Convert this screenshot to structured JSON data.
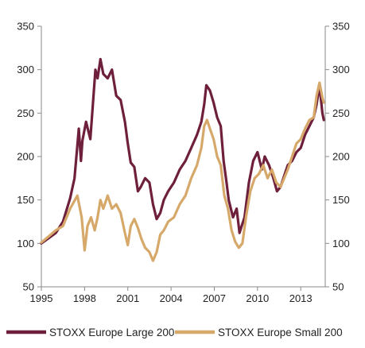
{
  "chart_data": {
    "type": "line",
    "title": "",
    "xlabel": "",
    "ylabel": "",
    "x_ticks": [
      "1995",
      "1998",
      "2001",
      "2004",
      "2007",
      "2010",
      "2013"
    ],
    "x_tick_values": [
      1995,
      1998,
      2001,
      2004,
      2007,
      2010,
      2013
    ],
    "xlim": [
      1995,
      2014.7
    ],
    "y_ticks": [
      "50",
      "100",
      "150",
      "200",
      "250",
      "300",
      "350"
    ],
    "y_tick_values": [
      50,
      100,
      150,
      200,
      250,
      300,
      350
    ],
    "ylim": [
      50,
      350
    ],
    "secondary_y_axis": true,
    "grid": false,
    "legend_position": "bottom",
    "series": [
      {
        "name": "STOXX Europe Large 200",
        "color": "#6e1f3c",
        "x": [
          1995.0,
          1995.5,
          1996.0,
          1996.5,
          1997.0,
          1997.3,
          1997.6,
          1997.75,
          1997.85,
          1998.1,
          1998.4,
          1998.6,
          1998.75,
          1998.9,
          1999.1,
          1999.3,
          1999.6,
          1999.9,
          2000.2,
          2000.5,
          2000.8,
          2001.0,
          2001.2,
          2001.45,
          2001.7,
          2001.9,
          2002.2,
          2002.5,
          2002.75,
          2003.0,
          2003.25,
          2003.5,
          2003.8,
          2004.2,
          2004.6,
          2005.0,
          2005.4,
          2005.8,
          2006.1,
          2006.3,
          2006.45,
          2006.7,
          2006.95,
          2007.2,
          2007.45,
          2007.65,
          2007.85,
          2008.0,
          2008.3,
          2008.55,
          2008.75,
          2008.9,
          2009.1,
          2009.4,
          2009.7,
          2010.0,
          2010.3,
          2010.5,
          2010.8,
          2011.1,
          2011.35,
          2011.6,
          2011.8,
          2012.1,
          2012.4,
          2012.7,
          2013.0,
          2013.3,
          2013.6,
          2013.9,
          2014.1,
          2014.3,
          2014.5,
          2014.6
        ],
        "values": [
          100,
          106,
          112,
          125,
          152,
          175,
          232,
          195,
          218,
          240,
          220,
          265,
          300,
          290,
          312,
          295,
          290,
          300,
          270,
          265,
          240,
          215,
          193,
          188,
          160,
          165,
          175,
          170,
          145,
          128,
          135,
          150,
          160,
          170,
          185,
          195,
          210,
          225,
          240,
          260,
          282,
          276,
          262,
          245,
          235,
          195,
          170,
          150,
          130,
          140,
          112,
          120,
          130,
          170,
          195,
          205,
          185,
          200,
          190,
          175,
          160,
          165,
          175,
          190,
          195,
          205,
          210,
          225,
          235,
          245,
          260,
          282,
          250,
          242
        ]
      },
      {
        "name": "STOXX Europe Small 200",
        "color": "#d6a96a",
        "x": [
          1995.0,
          1995.5,
          1996.0,
          1996.5,
          1997.0,
          1997.5,
          1997.8,
          1998.0,
          1998.2,
          1998.45,
          1998.7,
          1998.9,
          1999.1,
          1999.3,
          1999.6,
          1999.9,
          2000.2,
          2000.5,
          2000.8,
          2001.0,
          2001.2,
          2001.45,
          2001.7,
          2001.95,
          2002.2,
          2002.5,
          2002.75,
          2003.0,
          2003.25,
          2003.5,
          2003.8,
          2004.2,
          2004.6,
          2005.0,
          2005.4,
          2005.8,
          2006.1,
          2006.3,
          2006.5,
          2006.7,
          2006.95,
          2007.2,
          2007.45,
          2007.7,
          2007.95,
          2008.2,
          2008.45,
          2008.7,
          2008.95,
          2009.2,
          2009.5,
          2009.8,
          2010.1,
          2010.4,
          2010.7,
          2011.0,
          2011.3,
          2011.6,
          2011.85,
          2012.1,
          2012.4,
          2012.7,
          2013.0,
          2013.3,
          2013.6,
          2013.9,
          2014.1,
          2014.3,
          2014.5,
          2014.6
        ],
        "values": [
          101,
          108,
          115,
          120,
          140,
          155,
          130,
          92,
          120,
          130,
          115,
          130,
          150,
          140,
          155,
          140,
          145,
          135,
          112,
          98,
          120,
          128,
          118,
          105,
          95,
          90,
          80,
          90,
          110,
          115,
          125,
          130,
          145,
          155,
          175,
          190,
          210,
          235,
          242,
          232,
          220,
          200,
          190,
          155,
          140,
          115,
          102,
          95,
          100,
          130,
          160,
          175,
          180,
          190,
          175,
          185,
          170,
          165,
          175,
          185,
          200,
          215,
          220,
          232,
          242,
          245,
          270,
          285,
          268,
          262
        ]
      }
    ]
  }
}
